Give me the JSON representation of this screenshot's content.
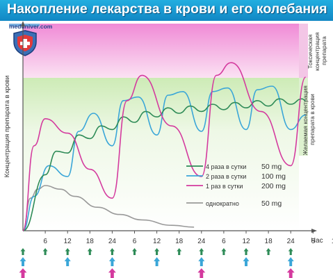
{
  "header": {
    "title": "Накопление лекарства в крови и его колебания",
    "site": "meduniver.com"
  },
  "zones": {
    "toxic_label": "Токсическая концентрация препарата",
    "desired_label": "Желаемая концентрация препарата в крови"
  },
  "colors": {
    "title_bar": "#1a9ad6",
    "toxic_zone": "#f0a6dc",
    "desired_zone": "#d8f0c0",
    "series_4x": "#2e8b57",
    "series_2x": "#3aa6d8",
    "series_1x": "#d43a9e",
    "series_single": "#999999",
    "marker_4x": "#2e8b57",
    "marker_2x": "#3aa6d8",
    "marker_1x": "#d43a9e"
  },
  "chart_data": {
    "type": "line",
    "title": "Накопление лекарства в крови и его колебания",
    "ylabel": "Концентрация препарата в крови",
    "xlabel": "Час",
    "x_ticks": [
      "6",
      "12",
      "18",
      "24",
      "6",
      "12",
      "18",
      "24",
      "6",
      "12",
      "18",
      "24",
      "6",
      "12"
    ],
    "xlim": [
      0,
      78
    ],
    "ylim": [
      0,
      100
    ],
    "y_units": "relative (not printed)",
    "grid": false,
    "legend_position": "bottom-right",
    "zones": [
      {
        "name": "Токсическая концентрация препарата",
        "y_range": [
          78,
          100
        ]
      },
      {
        "name": "Желаемая концентрация препарата в крови",
        "y_range": [
          0,
          78
        ]
      }
    ],
    "series": [
      {
        "name": "4 раза в сутки",
        "dose": "50 mg",
        "dose_times_h": [
          0,
          6,
          12,
          18,
          24,
          30,
          36,
          42,
          48,
          54,
          60,
          66,
          72
        ],
        "x": [
          0,
          6,
          9,
          12,
          15,
          18,
          21,
          24,
          27,
          30,
          33,
          36,
          39,
          42,
          45,
          48,
          51,
          54,
          57,
          60,
          63,
          66,
          69,
          72,
          75,
          76
        ],
        "y": [
          0,
          31,
          44,
          43,
          53,
          51,
          58,
          56,
          63,
          60,
          66,
          63,
          68,
          65,
          69,
          66,
          70,
          67,
          71,
          68,
          72,
          69,
          73,
          70,
          73,
          72
        ]
      },
      {
        "name": "2 раза в сутки",
        "dose": "100 mg",
        "dose_times_h": [
          0,
          12,
          24,
          36,
          48,
          60,
          72
        ],
        "x": [
          0,
          3,
          7,
          12,
          15,
          19,
          24,
          27,
          31,
          36,
          39,
          43,
          48,
          51,
          55,
          60,
          63,
          67,
          72,
          76
        ],
        "y": [
          0,
          19,
          36,
          30,
          55,
          65,
          47,
          72,
          74,
          53,
          75,
          77,
          55,
          77,
          79,
          56,
          78,
          80,
          56,
          64
        ]
      },
      {
        "name": "1 раз в сутки",
        "dose": "200 mg",
        "dose_times_h": [
          0,
          24,
          48,
          72
        ],
        "x": [
          0,
          3,
          6,
          12,
          18,
          24,
          28,
          32,
          40,
          48,
          52,
          56,
          64,
          72,
          76
        ],
        "y": [
          0,
          47,
          62,
          54,
          34,
          18,
          72,
          86,
          58,
          30,
          86,
          93,
          66,
          36,
          85
        ]
      },
      {
        "name": "однократно",
        "dose": "50 mg",
        "x": [
          0,
          2,
          4,
          6,
          10,
          14,
          20,
          26,
          32,
          40,
          46
        ],
        "y": [
          0,
          18,
          23,
          25,
          23,
          19,
          13,
          9,
          6,
          3,
          2
        ]
      }
    ]
  },
  "legend": [
    {
      "label": "4 раза в сутки",
      "dose": "50 mg"
    },
    {
      "label": "2 раза в сутки",
      "dose": "100 mg"
    },
    {
      "label": "1 раз в сутки",
      "dose": "200 mg"
    },
    {
      "label": "однократно",
      "dose": "50 mg"
    }
  ]
}
